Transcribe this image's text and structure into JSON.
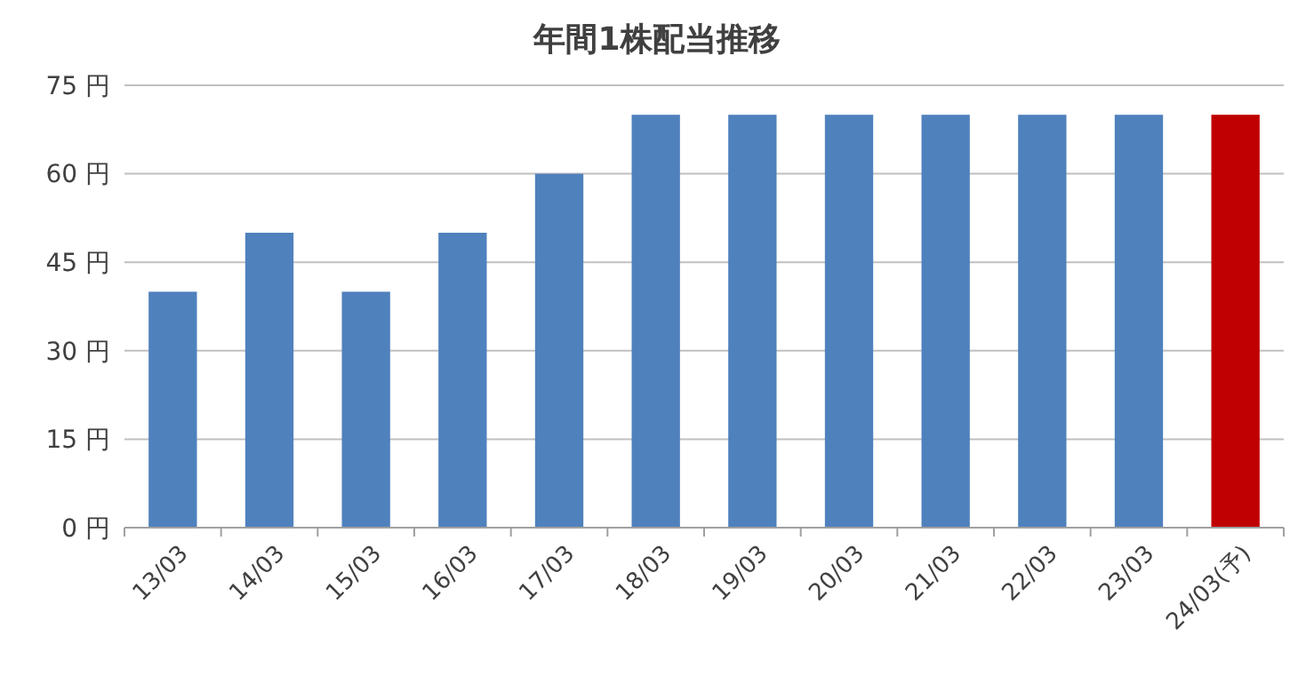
{
  "chart_data": {
    "type": "bar",
    "title": "年間1株配当推移",
    "categories": [
      "13/03",
      "14/03",
      "15/03",
      "16/03",
      "17/03",
      "18/03",
      "19/03",
      "20/03",
      "21/03",
      "22/03",
      "23/03",
      "24/03(予)"
    ],
    "values": [
      40,
      50,
      40,
      50,
      60,
      70,
      70,
      70,
      70,
      70,
      70,
      70
    ],
    "colors": [
      "#4f81bd",
      "#4f81bd",
      "#4f81bd",
      "#4f81bd",
      "#4f81bd",
      "#4f81bd",
      "#4f81bd",
      "#4f81bd",
      "#4f81bd",
      "#4f81bd",
      "#4f81bd",
      "#c00000"
    ],
    "ylim": [
      0,
      75
    ],
    "yticks": [
      {
        "value": 0,
        "label": "0 円"
      },
      {
        "value": 15,
        "label": "15 円"
      },
      {
        "value": 30,
        "label": "30 円"
      },
      {
        "value": 45,
        "label": "45 円"
      },
      {
        "value": 60,
        "label": "60 円"
      },
      {
        "value": 75,
        "label": "75 円"
      }
    ],
    "grid": "y"
  }
}
